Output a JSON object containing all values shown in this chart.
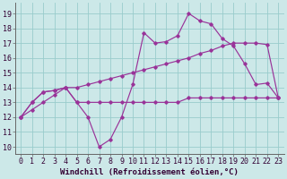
{
  "xlabel": "Windchill (Refroidissement éolien,°C)",
  "background_color": "#cce8e8",
  "grid_color": "#99cccc",
  "line_color": "#993399",
  "x_hours": [
    0,
    1,
    2,
    3,
    4,
    5,
    6,
    7,
    8,
    9,
    10,
    11,
    12,
    13,
    14,
    15,
    16,
    17,
    18,
    19,
    20,
    21,
    22,
    23
  ],
  "line1": [
    12.0,
    13.0,
    13.7,
    13.8,
    14.0,
    13.0,
    12.0,
    10.0,
    10.5,
    12.0,
    14.2,
    17.7,
    17.0,
    17.1,
    17.5,
    19.0,
    18.5,
    18.3,
    17.3,
    16.8,
    15.6,
    14.2,
    14.3,
    13.3
  ],
  "line2": [
    12.0,
    13.0,
    13.7,
    13.8,
    14.0,
    13.0,
    13.0,
    13.0,
    13.0,
    13.0,
    13.0,
    13.0,
    13.0,
    13.0,
    13.0,
    13.3,
    13.3,
    13.3,
    13.3,
    13.3,
    13.3,
    13.3,
    13.3,
    13.3
  ],
  "line3": [
    12.0,
    12.5,
    13.0,
    13.5,
    14.0,
    14.0,
    14.2,
    14.4,
    14.6,
    14.8,
    15.0,
    15.2,
    15.4,
    15.6,
    15.8,
    16.0,
    16.3,
    16.5,
    16.8,
    17.0,
    17.0,
    17.0,
    16.9,
    13.3
  ],
  "yticks": [
    10,
    11,
    12,
    13,
    14,
    15,
    16,
    17,
    18,
    19
  ],
  "fontsize_label": 6.5,
  "fontsize_tick": 6.0
}
